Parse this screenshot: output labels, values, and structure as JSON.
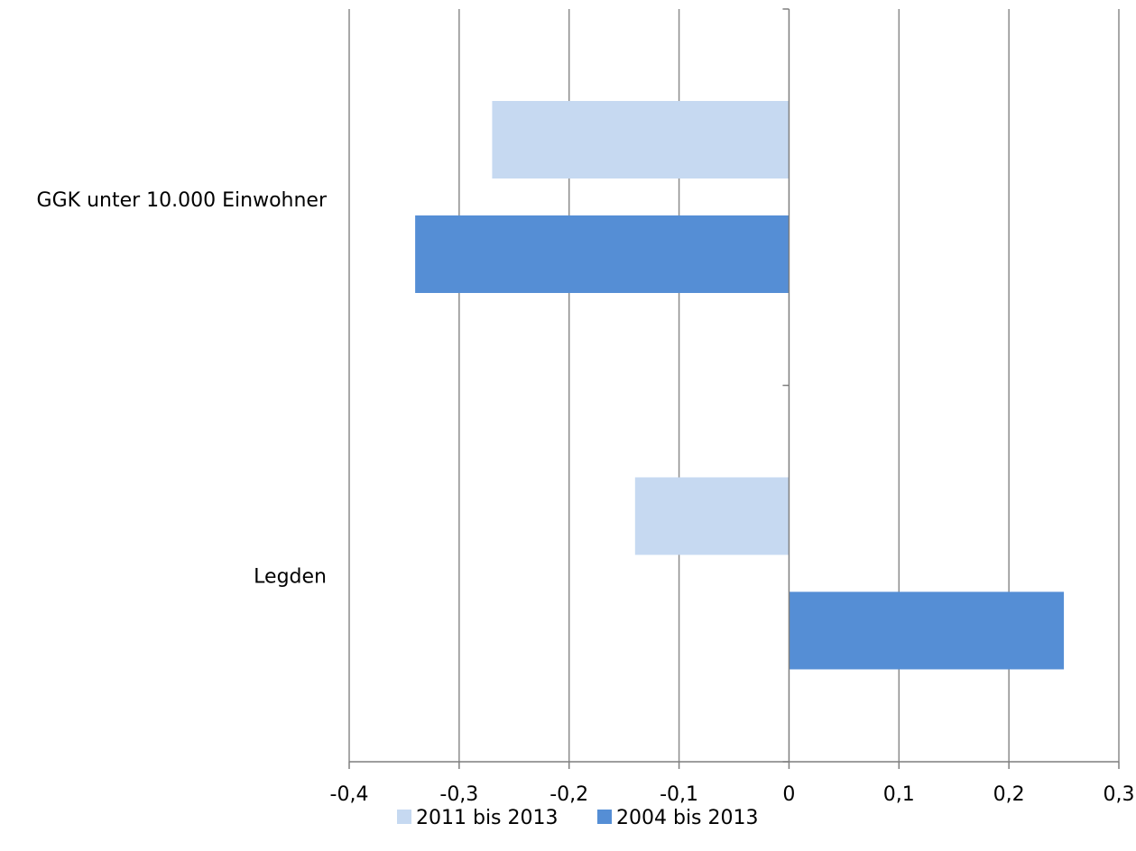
{
  "chart_data": {
    "type": "bar",
    "orientation": "horizontal",
    "title": "",
    "xlabel": "",
    "ylabel": "",
    "categories": [
      "GGK unter 10.000 Einwohner",
      "Legden"
    ],
    "series": [
      {
        "name": "2011 bis 2013",
        "color": "#c6d9f1",
        "values": [
          -0.27,
          -0.14
        ]
      },
      {
        "name": "2004 bis 2013",
        "color": "#558ed5",
        "values": [
          -0.34,
          0.25
        ]
      }
    ],
    "xlim": [
      -0.4,
      0.3
    ],
    "xticks": [
      -0.4,
      -0.3,
      -0.2,
      -0.1,
      0,
      0.1,
      0.2,
      0.3
    ],
    "xtick_labels": [
      "-0,4",
      "-0,3",
      "-0,2",
      "-0,1",
      "0",
      "0,1",
      "0,2",
      "0,3"
    ],
    "grid": "vertical",
    "legend_position": "bottom"
  }
}
